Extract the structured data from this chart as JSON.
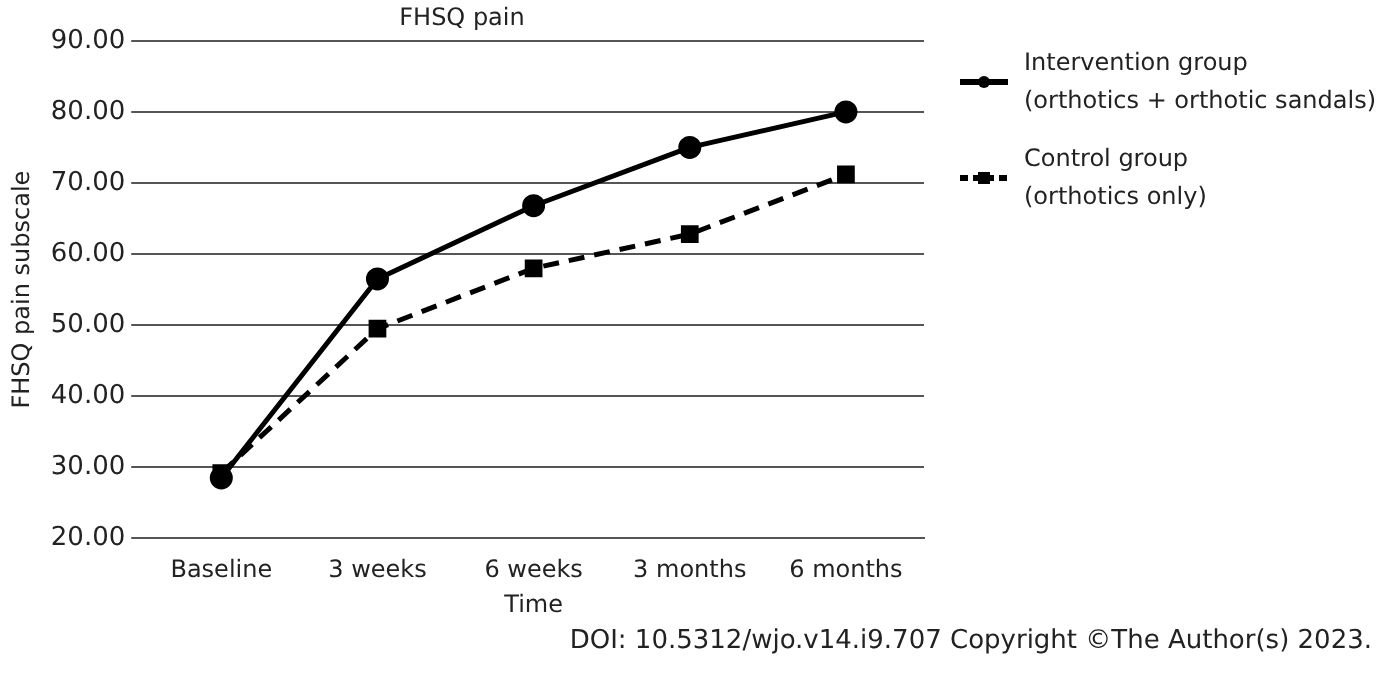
{
  "chart_data": {
    "type": "line",
    "title": "FHSQ pain",
    "xlabel": "Time",
    "ylabel": "FHSQ pain subscale",
    "categories": [
      "Baseline",
      "3 weeks",
      "6 weeks",
      "3 months",
      "6 months"
    ],
    "series": [
      {
        "name": "Intervention group\n(orthotics + orthotic sandals)",
        "color": "#000000",
        "marker": "circle",
        "line_style": "solid",
        "values": [
          28.5,
          56.5,
          66.8,
          75,
          80
        ]
      },
      {
        "name": "Control group\n(orthotics only)",
        "color": "#000000",
        "marker": "square",
        "line_style": "dashed",
        "values": [
          29.2,
          49.5,
          58,
          62.8,
          71.2
        ]
      }
    ],
    "ylim": [
      20,
      90
    ],
    "yticks": [
      {
        "value": 20,
        "label": "20.00"
      },
      {
        "value": 30,
        "label": "30.00"
      },
      {
        "value": 40,
        "label": "40.00"
      },
      {
        "value": 50,
        "label": "50.00"
      },
      {
        "value": 60,
        "label": "60.00"
      },
      {
        "value": 70,
        "label": "70.00"
      },
      {
        "value": 80,
        "label": "80.00"
      },
      {
        "value": 90,
        "label": "90.00"
      }
    ],
    "grid": "y",
    "legend": "right",
    "annotations": [
      "DOI: 10.5312/wjo.v14.i9.707 Copyright ©The Author(s) 2023."
    ]
  }
}
